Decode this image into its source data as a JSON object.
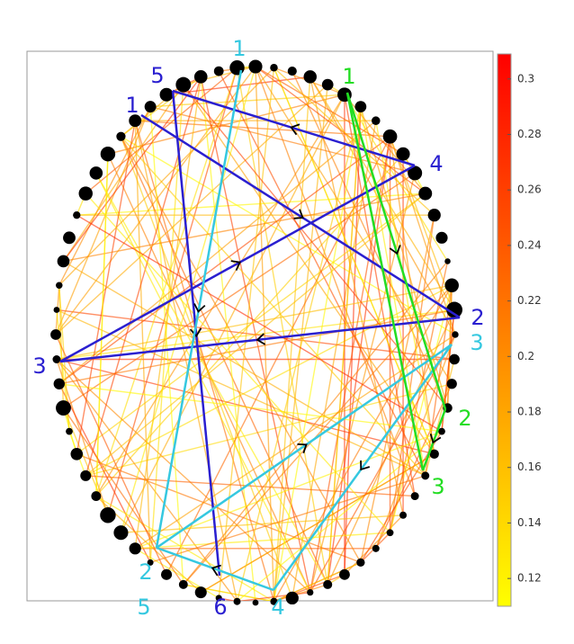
{
  "colorbar": {
    "lim": [
      0.11,
      0.309
    ],
    "ticks": [
      0.12,
      0.14,
      0.16,
      0.18,
      0.2,
      0.22,
      0.24,
      0.26,
      0.28,
      0.3
    ],
    "colors": [
      "#ffff00",
      "#ff8000",
      "#ff0000"
    ]
  },
  "paths": [
    {
      "color": "#2a1fd0",
      "labels": [
        "1",
        "2",
        "3",
        "4",
        "5",
        "6"
      ]
    },
    {
      "color": "#35c8e0",
      "labels": [
        "1",
        "2",
        "3",
        "4",
        "5"
      ]
    },
    {
      "color": "#22dd22",
      "labels": [
        "1",
        "2",
        "3"
      ]
    }
  ]
}
